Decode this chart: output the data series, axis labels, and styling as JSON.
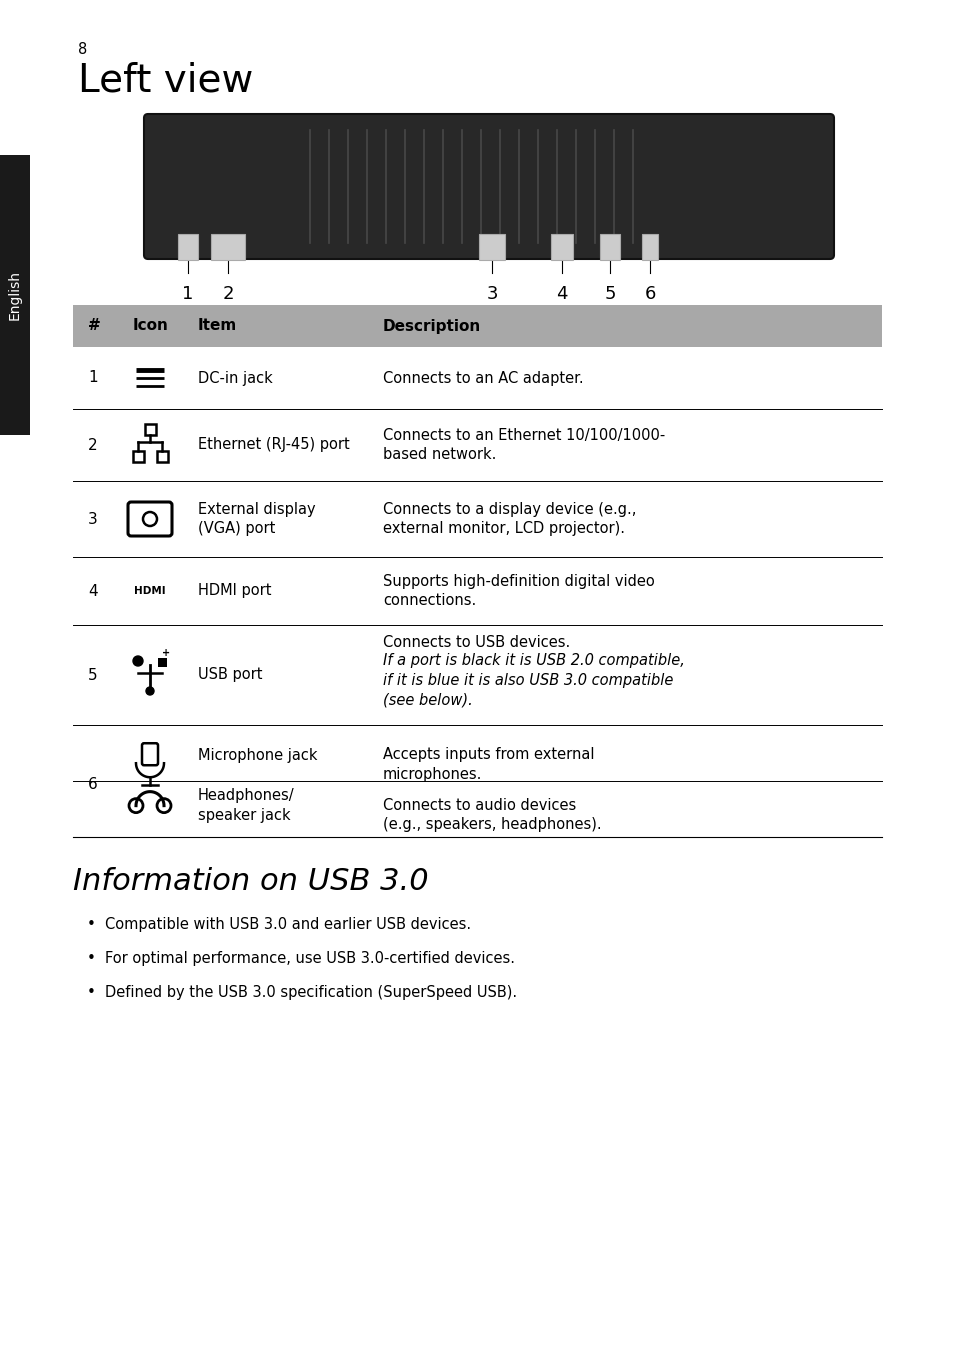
{
  "page_number": "8",
  "title": "Left view",
  "sidebar_text": "English",
  "sidebar_bg": "#1a1a1a",
  "sidebar_text_color": "#ffffff",
  "header_bg": "#a8a8a8",
  "header_cols": [
    "#",
    "Icon",
    "Item",
    "Description"
  ],
  "usb_title": "Information on USB 3.0",
  "usb_bullets": [
    "Compatible with USB 3.0 and earlier USB devices.",
    "For optimal performance, use USB 3.0-certified devices.",
    "Defined by the USB 3.0 specification (SuperSpeed USB)."
  ],
  "bg_color": "#ffffff",
  "text_color": "#000000"
}
